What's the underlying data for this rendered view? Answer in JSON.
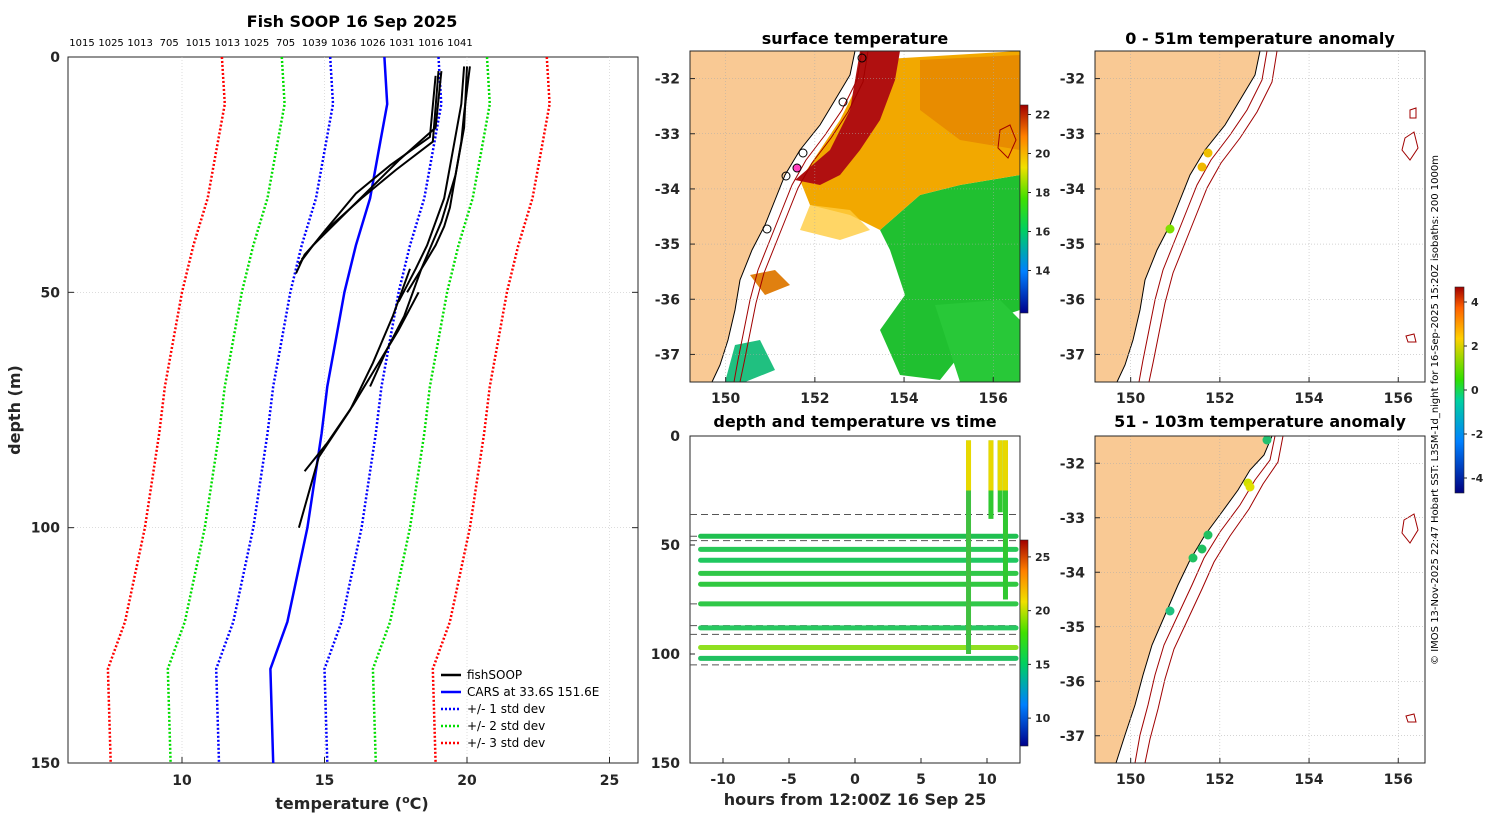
{
  "chart_data": [
    {
      "type": "line",
      "title": "Fish SOOP 16 Sep 2025",
      "top_labels": [
        "1015",
        "1025",
        "1013",
        "705",
        "1015",
        "1013",
        "1025",
        "705",
        "1039",
        "1036",
        "1026",
        "1031",
        "1016",
        "1041"
      ],
      "xlabel": "temperature (",
      "xlabel_sup": "o",
      "xlabel_unit": "C)",
      "ylabel": "depth (m)",
      "xlim": [
        6,
        26
      ],
      "ylim": [
        150,
        0
      ],
      "xticks": [
        "10",
        "15",
        "20",
        "25"
      ],
      "xtick_values": [
        10,
        15,
        20,
        25
      ],
      "yticks": [
        "0",
        "50",
        "100",
        "150"
      ],
      "ytick_values": [
        0,
        50,
        100,
        150
      ],
      "legend": [
        "fishSOOP",
        "CARS at 33.6S 151.6E",
        "+/- 1 std dev",
        "+/- 2 std dev",
        "+/- 3 std dev"
      ],
      "colors": {
        "fishsoop": "#000000",
        "cars": "#0000ff",
        "std1": "#0000ff",
        "std2": "#00dd00",
        "std3": "#ff0000"
      },
      "cars": {
        "depth": [
          0,
          10,
          20,
          30,
          40,
          50,
          60,
          70,
          80,
          100,
          120,
          130,
          150
        ],
        "temp": [
          17.1,
          17.2,
          16.9,
          16.6,
          16.1,
          15.7,
          15.4,
          15.1,
          14.9,
          14.4,
          13.7,
          13.1,
          13.2
        ]
      },
      "std_offsets": [
        1.9,
        3.6,
        5.7
      ],
      "fishsoop": [
        {
          "depth": [
            2,
            10,
            20,
            30,
            40,
            45,
            52
          ],
          "temp": [
            19.9,
            19.8,
            19.5,
            19.2,
            18.6,
            18.2,
            17.6
          ]
        },
        {
          "depth": [
            2,
            12,
            18,
            25,
            32,
            36,
            40,
            44,
            50
          ],
          "temp": [
            20.1,
            19.9,
            19.8,
            19.6,
            19.4,
            19.2,
            18.9,
            18.5,
            17.9
          ]
        },
        {
          "depth": [
            2,
            15,
            25,
            35,
            45,
            55,
            62,
            70
          ],
          "temp": [
            20.0,
            19.9,
            19.6,
            19.1,
            18.4,
            17.8,
            17.2,
            16.6
          ]
        },
        {
          "depth": [
            3,
            18,
            24,
            30,
            36,
            42,
            46
          ],
          "temp": [
            19.0,
            18.8,
            17.5,
            16.3,
            15.2,
            14.3,
            14.0
          ]
        },
        {
          "depth": [
            3,
            15,
            22,
            28,
            34,
            40,
            44
          ],
          "temp": [
            19.1,
            18.9,
            17.6,
            16.6,
            15.6,
            14.6,
            14.1
          ]
        },
        {
          "depth": [
            4,
            17,
            23,
            29,
            37,
            43
          ],
          "temp": [
            18.9,
            18.7,
            17.3,
            16.1,
            15.0,
            14.2
          ]
        },
        {
          "depth": [
            50,
            58,
            66,
            74,
            82,
            88
          ],
          "temp": [
            18.3,
            17.6,
            16.8,
            16.0,
            15.1,
            14.3
          ]
        },
        {
          "depth": [
            45,
            55,
            65,
            75,
            85,
            100
          ],
          "temp": [
            18.0,
            17.4,
            16.7,
            15.9,
            14.8,
            14.1
          ]
        }
      ]
    },
    {
      "type": "heatmap",
      "title": "surface temperature",
      "xticks": [
        "150",
        "152",
        "154",
        "156"
      ],
      "yticks": [
        "-32",
        "-33",
        "-34",
        "-35",
        "-36",
        "-37"
      ],
      "colorbar_ticks": [
        "22",
        "20",
        "18",
        "16",
        "14"
      ]
    },
    {
      "type": "scatter",
      "title": "depth and temperature vs time",
      "xlabel": "hours from 12:00Z 16 Sep 25",
      "xticks": [
        "-10",
        "-5",
        "0",
        "5",
        "10"
      ],
      "xtick_values": [
        -10,
        -5,
        0,
        5,
        10
      ],
      "yticks": [
        "0",
        "50",
        "100",
        "150"
      ],
      "ytick_values": [
        0,
        50,
        100,
        150
      ],
      "xlim": [
        -12.5,
        12.5
      ],
      "ylim": [
        150,
        0
      ],
      "colorbar_ticks": [
        "25",
        "20",
        "15",
        "10"
      ],
      "trawl_depths": [
        46,
        52,
        57,
        63,
        68,
        77,
        88,
        97,
        102
      ],
      "dashed_depths": [
        36,
        46,
        48,
        77,
        87,
        91,
        105
      ],
      "casts": [
        {
          "hour": 8.6,
          "from": 2,
          "to": 100
        },
        {
          "hour": 10.3,
          "from": 2,
          "to": 38
        },
        {
          "hour": 11.0,
          "from": 2,
          "to": 35
        },
        {
          "hour": 11.4,
          "from": 2,
          "to": 75
        }
      ]
    },
    {
      "type": "scatter",
      "title": "0 - 51m temperature anomaly",
      "xticks": [
        "150",
        "152",
        "154",
        "156"
      ],
      "yticks": [
        "-32",
        "-33",
        "-34",
        "-35",
        "-36",
        "-37"
      ]
    },
    {
      "type": "scatter",
      "title": "51 - 103m temperature anomaly",
      "xticks": [
        "150",
        "152",
        "154",
        "156"
      ],
      "yticks": [
        "-32",
        "-33",
        "-34",
        "-35",
        "-36",
        "-37"
      ]
    }
  ],
  "anomaly_colorbar_ticks": [
    "4",
    "2",
    "0",
    "-2",
    "-4"
  ],
  "side_caption": "© IMOS 13-Nov-2025 22:47 Hobart SST: L3SM-1d_night for 16-Sep-2025 15:20Z isobaths: 200  1000m"
}
